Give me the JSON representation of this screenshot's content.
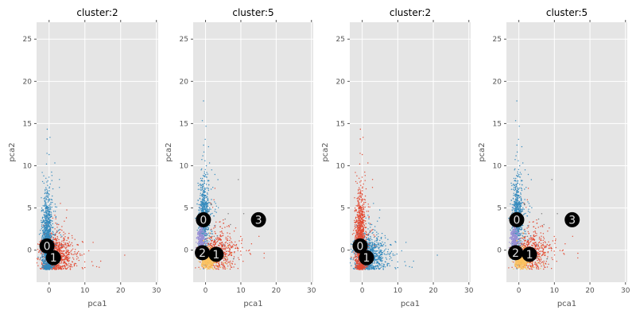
{
  "chart_data": [
    {
      "type": "scatter",
      "title": "cluster:2",
      "xlabel": "pca1",
      "ylabel": "pca2",
      "xlim": [
        -3.5,
        30.5
      ],
      "ylim": [
        -3.8,
        27
      ],
      "xticks": [
        0,
        10,
        20,
        30
      ],
      "yticks": [
        0,
        5,
        10,
        15,
        20,
        25
      ],
      "grid": true,
      "clusters": [
        {
          "color": "#e24a33",
          "mean": [
            1.8,
            -0.6
          ],
          "spread": [
            2.2,
            1.2
          ],
          "count": 900
        },
        {
          "color": "#348abd",
          "mean": [
            -0.6,
            1.0
          ],
          "spread": [
            0.7,
            2.6
          ],
          "count": 1100
        }
      ],
      "centers": [
        {
          "label": "0",
          "x": -0.6,
          "y": 0.5
        },
        {
          "label": "1",
          "x": 1.2,
          "y": -0.9
        }
      ]
    },
    {
      "type": "scatter",
      "title": "cluster:5",
      "xlabel": "pca1",
      "ylabel": "pca2",
      "xlim": [
        -3.5,
        30.5
      ],
      "ylim": [
        -3.8,
        27
      ],
      "xticks": [
        0,
        10,
        20,
        30
      ],
      "yticks": [
        0,
        5,
        10,
        15,
        20,
        25
      ],
      "grid": true,
      "clusters": [
        {
          "color": "#e24a33",
          "mean": [
            3.0,
            -0.2
          ],
          "spread": [
            2.3,
            1.2
          ],
          "count": 600
        },
        {
          "color": "#348abd",
          "mean": [
            -0.5,
            4.0
          ],
          "spread": [
            0.7,
            2.2
          ],
          "count": 700
        },
        {
          "color": "#988ed5",
          "mean": [
            -1.3,
            1.2
          ],
          "spread": [
            0.5,
            0.8
          ],
          "count": 300
        },
        {
          "color": "#fbc15e",
          "mean": [
            0.6,
            -1.2
          ],
          "spread": [
            1.0,
            0.6
          ],
          "count": 500
        },
        {
          "color": "#777777",
          "mean": [
            2.5,
            2.0
          ],
          "spread": [
            3.0,
            3.0
          ],
          "count": 15
        }
      ],
      "centers": [
        {
          "label": "0",
          "x": -0.6,
          "y": 3.6
        },
        {
          "label": "1",
          "x": 3.0,
          "y": -0.5
        },
        {
          "label": "2",
          "x": -0.9,
          "y": -0.3
        },
        {
          "label": "3",
          "x": 15.0,
          "y": 3.6
        }
      ]
    },
    {
      "type": "scatter",
      "title": "cluster:2",
      "xlabel": "pca1",
      "ylabel": "pca2",
      "xlim": [
        -3.5,
        30.5
      ],
      "ylim": [
        -3.8,
        27
      ],
      "xticks": [
        0,
        10,
        20,
        30
      ],
      "yticks": [
        0,
        5,
        10,
        15,
        20,
        25
      ],
      "grid": true,
      "clusters": [
        {
          "color": "#348abd",
          "mean": [
            1.8,
            -0.6
          ],
          "spread": [
            2.2,
            1.2
          ],
          "count": 900
        },
        {
          "color": "#e24a33",
          "mean": [
            -0.6,
            1.0
          ],
          "spread": [
            0.7,
            2.6
          ],
          "count": 1100
        }
      ],
      "centers": [
        {
          "label": "0",
          "x": -0.6,
          "y": 0.5
        },
        {
          "label": "1",
          "x": 1.2,
          "y": -0.9
        }
      ]
    },
    {
      "type": "scatter",
      "title": "cluster:5",
      "xlabel": "pca1",
      "ylabel": "pca2",
      "xlim": [
        -3.5,
        30.5
      ],
      "ylim": [
        -3.8,
        27
      ],
      "xticks": [
        0,
        10,
        20,
        30
      ],
      "yticks": [
        0,
        5,
        10,
        15,
        20,
        25
      ],
      "grid": true,
      "clusters": [
        {
          "color": "#e24a33",
          "mean": [
            3.0,
            -0.2
          ],
          "spread": [
            2.3,
            1.2
          ],
          "count": 600
        },
        {
          "color": "#348abd",
          "mean": [
            -0.5,
            4.0
          ],
          "spread": [
            0.7,
            2.2
          ],
          "count": 700
        },
        {
          "color": "#988ed5",
          "mean": [
            -1.3,
            1.2
          ],
          "spread": [
            0.5,
            0.8
          ],
          "count": 300
        },
        {
          "color": "#fbc15e",
          "mean": [
            0.6,
            -1.2
          ],
          "spread": [
            1.0,
            0.6
          ],
          "count": 500
        },
        {
          "color": "#777777",
          "mean": [
            2.5,
            2.0
          ],
          "spread": [
            3.0,
            3.0
          ],
          "count": 15
        }
      ],
      "centers": [
        {
          "label": "0",
          "x": -0.6,
          "y": 3.6
        },
        {
          "label": "1",
          "x": 3.0,
          "y": -0.5
        },
        {
          "label": "2",
          "x": -0.9,
          "y": -0.3
        },
        {
          "label": "3",
          "x": 15.0,
          "y": 3.6
        }
      ]
    }
  ]
}
